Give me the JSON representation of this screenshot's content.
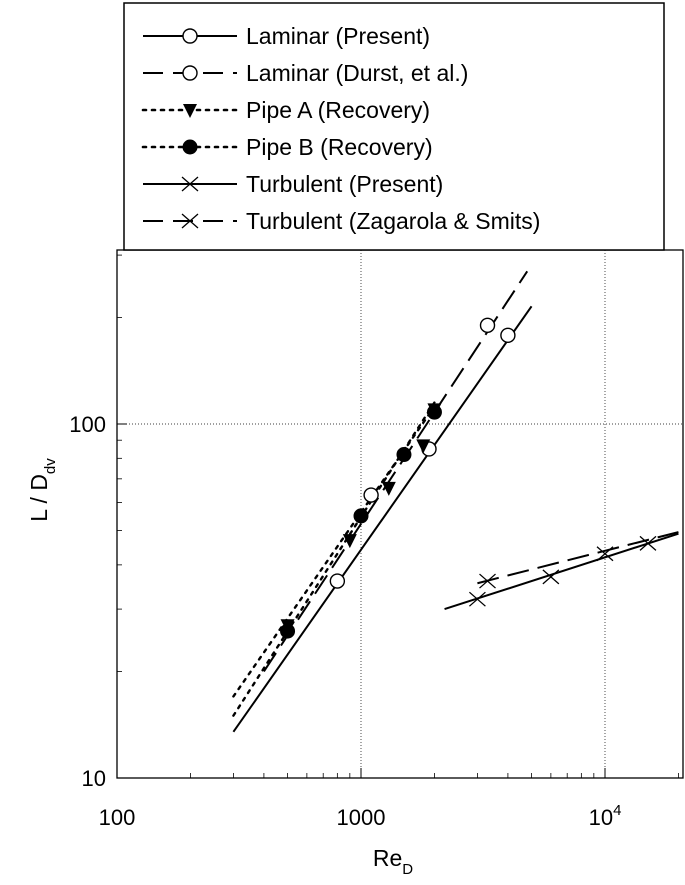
{
  "chart_data": {
    "type": "scatter",
    "xscale": "log",
    "yscale": "log",
    "xlim": [
      100,
      20000
    ],
    "ylim": [
      10,
      300
    ],
    "grid": true,
    "legend_position": "top",
    "xlabel": "Re",
    "xlabel_sub": "D",
    "ylabel": "L / D",
    "ylabel_sub": "dv",
    "x_ticks": [
      {
        "value": 100,
        "label": "100"
      },
      {
        "value": 1000,
        "label": "1000"
      },
      {
        "value": 10000,
        "label": "10",
        "sup": "4"
      }
    ],
    "y_ticks": [
      {
        "value": 10,
        "label": "10"
      },
      {
        "value": 100,
        "label": "100"
      }
    ],
    "series": [
      {
        "name": "Laminar (Present)",
        "marker": "open-circle",
        "line": "solid",
        "points": [
          [
            800,
            36
          ],
          [
            1100,
            63
          ],
          [
            1900,
            85
          ],
          [
            4000,
            178
          ]
        ],
        "fit": [
          [
            300,
            13.5
          ],
          [
            5000,
            215
          ]
        ]
      },
      {
        "name": "Laminar (Durst, et al.)",
        "marker": "open-circle",
        "line": "dashed",
        "points": [
          [
            3300,
            190
          ]
        ],
        "fit": [
          [
            400,
            20
          ],
          [
            4800,
            270
          ]
        ]
      },
      {
        "name": "Pipe A (Recovery)",
        "marker": "filled-triangle-down",
        "line": "dotted",
        "points": [
          [
            500,
            27
          ],
          [
            900,
            47
          ],
          [
            1300,
            66
          ],
          [
            1800,
            87
          ],
          [
            2000,
            110
          ]
        ],
        "fit": [
          [
            300,
            15
          ],
          [
            2000,
            115
          ]
        ]
      },
      {
        "name": "Pipe B (Recovery)",
        "marker": "filled-circle",
        "line": "dotted",
        "points": [
          [
            500,
            26
          ],
          [
            1000,
            55
          ],
          [
            1500,
            82
          ],
          [
            2000,
            108
          ]
        ],
        "fit": [
          [
            300,
            17
          ],
          [
            2000,
            112
          ]
        ]
      },
      {
        "name": "Turbulent (Present)",
        "marker": "x",
        "line": "solid",
        "points": [
          [
            3000,
            32
          ],
          [
            6000,
            37
          ],
          [
            10000,
            43
          ],
          [
            15000,
            46
          ]
        ],
        "fit": [
          [
            2200,
            30
          ],
          [
            20000,
            49
          ]
        ]
      },
      {
        "name": "Turbulent (Zagarola & Smits)",
        "marker": "x",
        "line": "dashed",
        "points": [
          [
            3300,
            36
          ]
        ],
        "fit": [
          [
            3000,
            35.5
          ],
          [
            20000,
            49.5
          ]
        ]
      }
    ]
  }
}
